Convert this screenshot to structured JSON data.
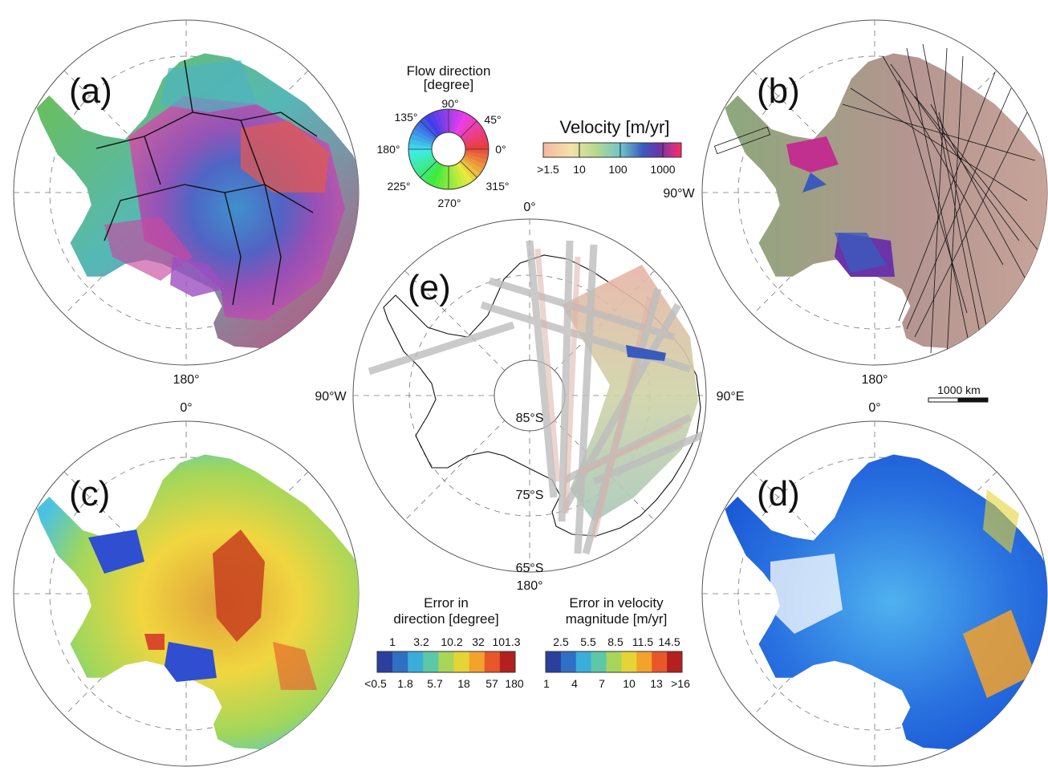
{
  "panels": {
    "a": {
      "letter": "(a)",
      "bottom_label": "180°"
    },
    "b": {
      "letter": "(b)",
      "bottom_label": "180°",
      "right_label": "90°W"
    },
    "c": {
      "letter": "(c)",
      "top_label": "0°"
    },
    "d": {
      "letter": "(d)",
      "top_label": "0°"
    },
    "e": {
      "letter": "(e)",
      "top_label": "0°",
      "bottom_label": "180°",
      "left_label": "90°W",
      "right_label": "90°E",
      "lat_labels": [
        "85°S",
        "75°S",
        "65°S"
      ]
    }
  },
  "flow_legend": {
    "title_line1": "Flow direction",
    "title_line2": "[degree]",
    "angles": [
      "90°",
      "45°",
      "0°",
      "315°",
      "270°",
      "225°",
      "180°",
      "135°"
    ]
  },
  "velocity_legend": {
    "title": "Velocity [m/yr]",
    "ticks": [
      ">1.5",
      "10",
      "100",
      "1000"
    ],
    "colors": [
      "#f6b7a5",
      "#f3e2a6",
      "#b6d98c",
      "#6fc6c9",
      "#3a5bbd",
      "#6b34a8",
      "#c2308f",
      "#ff2a5a"
    ]
  },
  "dir_error_legend": {
    "title_line1": "Error in",
    "title_line2": "direction [degree]",
    "top_ticks": [
      "1",
      "3.2",
      "10.2",
      "32",
      "101.3"
    ],
    "bottom_ticks": [
      "<0.5",
      "1.8",
      "5.7",
      "18",
      "57",
      "180"
    ],
    "colors": [
      "#2b3f9e",
      "#2f6fc4",
      "#3aaed8",
      "#5cc8a8",
      "#a8d55a",
      "#e4d436",
      "#f3a22b",
      "#e8572a",
      "#b3201f"
    ]
  },
  "vel_error_legend": {
    "title_line1": "Error in velocity",
    "title_line2": "magnitude [m/yr]",
    "top_ticks": [
      "2.5",
      "5.5",
      "8.5",
      "11.5",
      "14.5"
    ],
    "bottom_ticks": [
      "1",
      "4",
      "7",
      "10",
      "13",
      ">16"
    ],
    "colors": [
      "#2b3f9e",
      "#2f6fc4",
      "#3aaed8",
      "#5cc8a8",
      "#a8d55a",
      "#e4d436",
      "#f3a22b",
      "#e8572a",
      "#b3201f"
    ]
  },
  "scale_bar": {
    "label": "1000 km"
  }
}
